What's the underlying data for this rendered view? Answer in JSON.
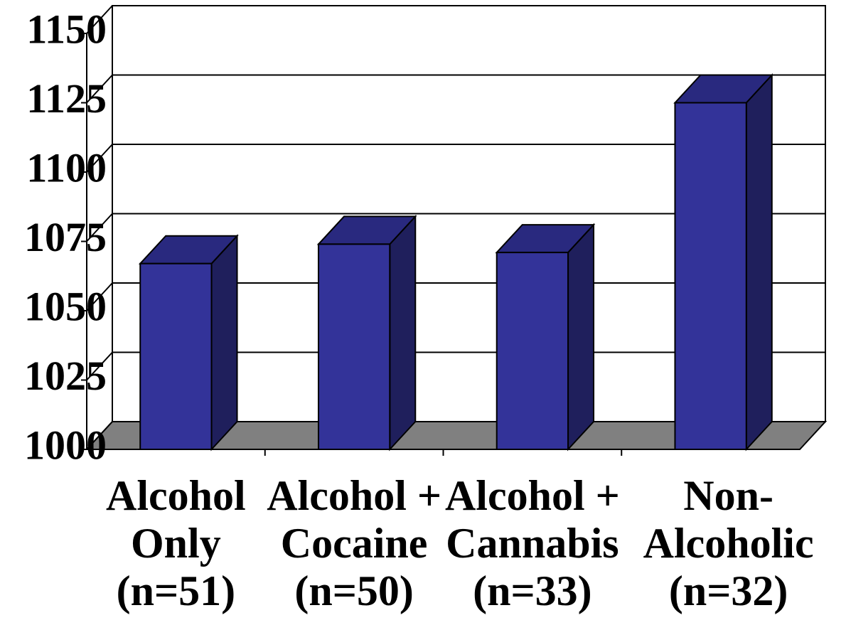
{
  "chart_data": {
    "type": "bar3d",
    "categories": [
      [
        "Alcohol",
        "Only",
        "(n=51)"
      ],
      [
        "Alcohol +",
        "Cocaine",
        "(n=50)"
      ],
      [
        "Alcohol +",
        "Cannabis",
        "(n=33)"
      ],
      [
        "Non-",
        "Alcoholic",
        "(n=32)"
      ]
    ],
    "values": [
      1067,
      1074,
      1071,
      1125
    ],
    "color": "#333399",
    "ylim": [
      1000,
      1150
    ],
    "yticks": [
      1000,
      1025,
      1050,
      1075,
      1100,
      1125,
      1150
    ],
    "grid": true
  }
}
